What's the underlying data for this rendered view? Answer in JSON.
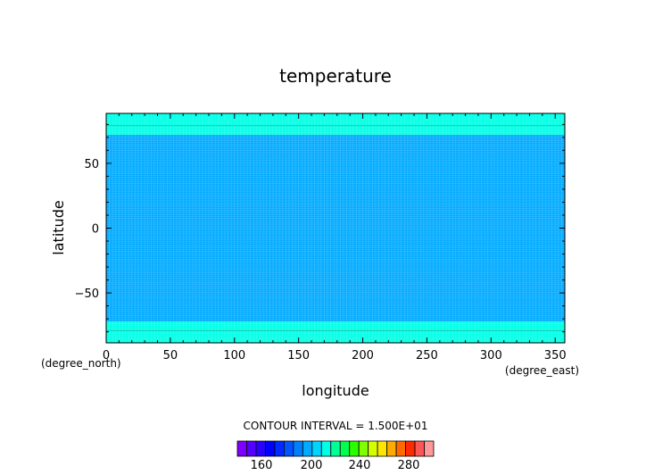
{
  "chart_data": {
    "type": "heatmap",
    "title": "temperature",
    "xlabel": "longitude",
    "ylabel": "latitude",
    "x_units": "(degree_east)",
    "y_units": "(degree_north)",
    "xlim": [
      0,
      357.5
    ],
    "ylim": [
      -88.5,
      88.5
    ],
    "x_ticks": [
      0,
      50,
      100,
      150,
      200,
      250,
      300,
      350
    ],
    "y_ticks": [
      -50,
      0,
      50
    ],
    "x_tick_labels": [
      "0",
      "50",
      "100",
      "150",
      "200",
      "250",
      "300",
      "350"
    ],
    "y_tick_labels": [
      "−50",
      "0",
      "50"
    ],
    "bands": [
      {
        "lat_min": -88.5,
        "lat_max": -72,
        "color": "#00ffe6"
      },
      {
        "lat_min": -72,
        "lat_max": 72,
        "color": "#00aaff"
      },
      {
        "lat_min": 72,
        "lat_max": 88.5,
        "color": "#00ffe6"
      }
    ],
    "grid_lines": true,
    "contour_interval_text": "CONTOUR INTERVAL = 1.500E+01",
    "colorbar": {
      "colors": [
        "#7f00ff",
        "#5500ff",
        "#2a00ff",
        "#0000ff",
        "#002aff",
        "#0055ff",
        "#0080ff",
        "#00aaff",
        "#00d4ff",
        "#00ffe6",
        "#00ff99",
        "#00ff4c",
        "#2aff00",
        "#80ff00",
        "#d4ff00",
        "#ffe600",
        "#ffaa00",
        "#ff6a00",
        "#ff2a00",
        "#ff5555",
        "#ff9999"
      ],
      "tick_values": [
        "160",
        "200",
        "240",
        "280"
      ]
    }
  }
}
